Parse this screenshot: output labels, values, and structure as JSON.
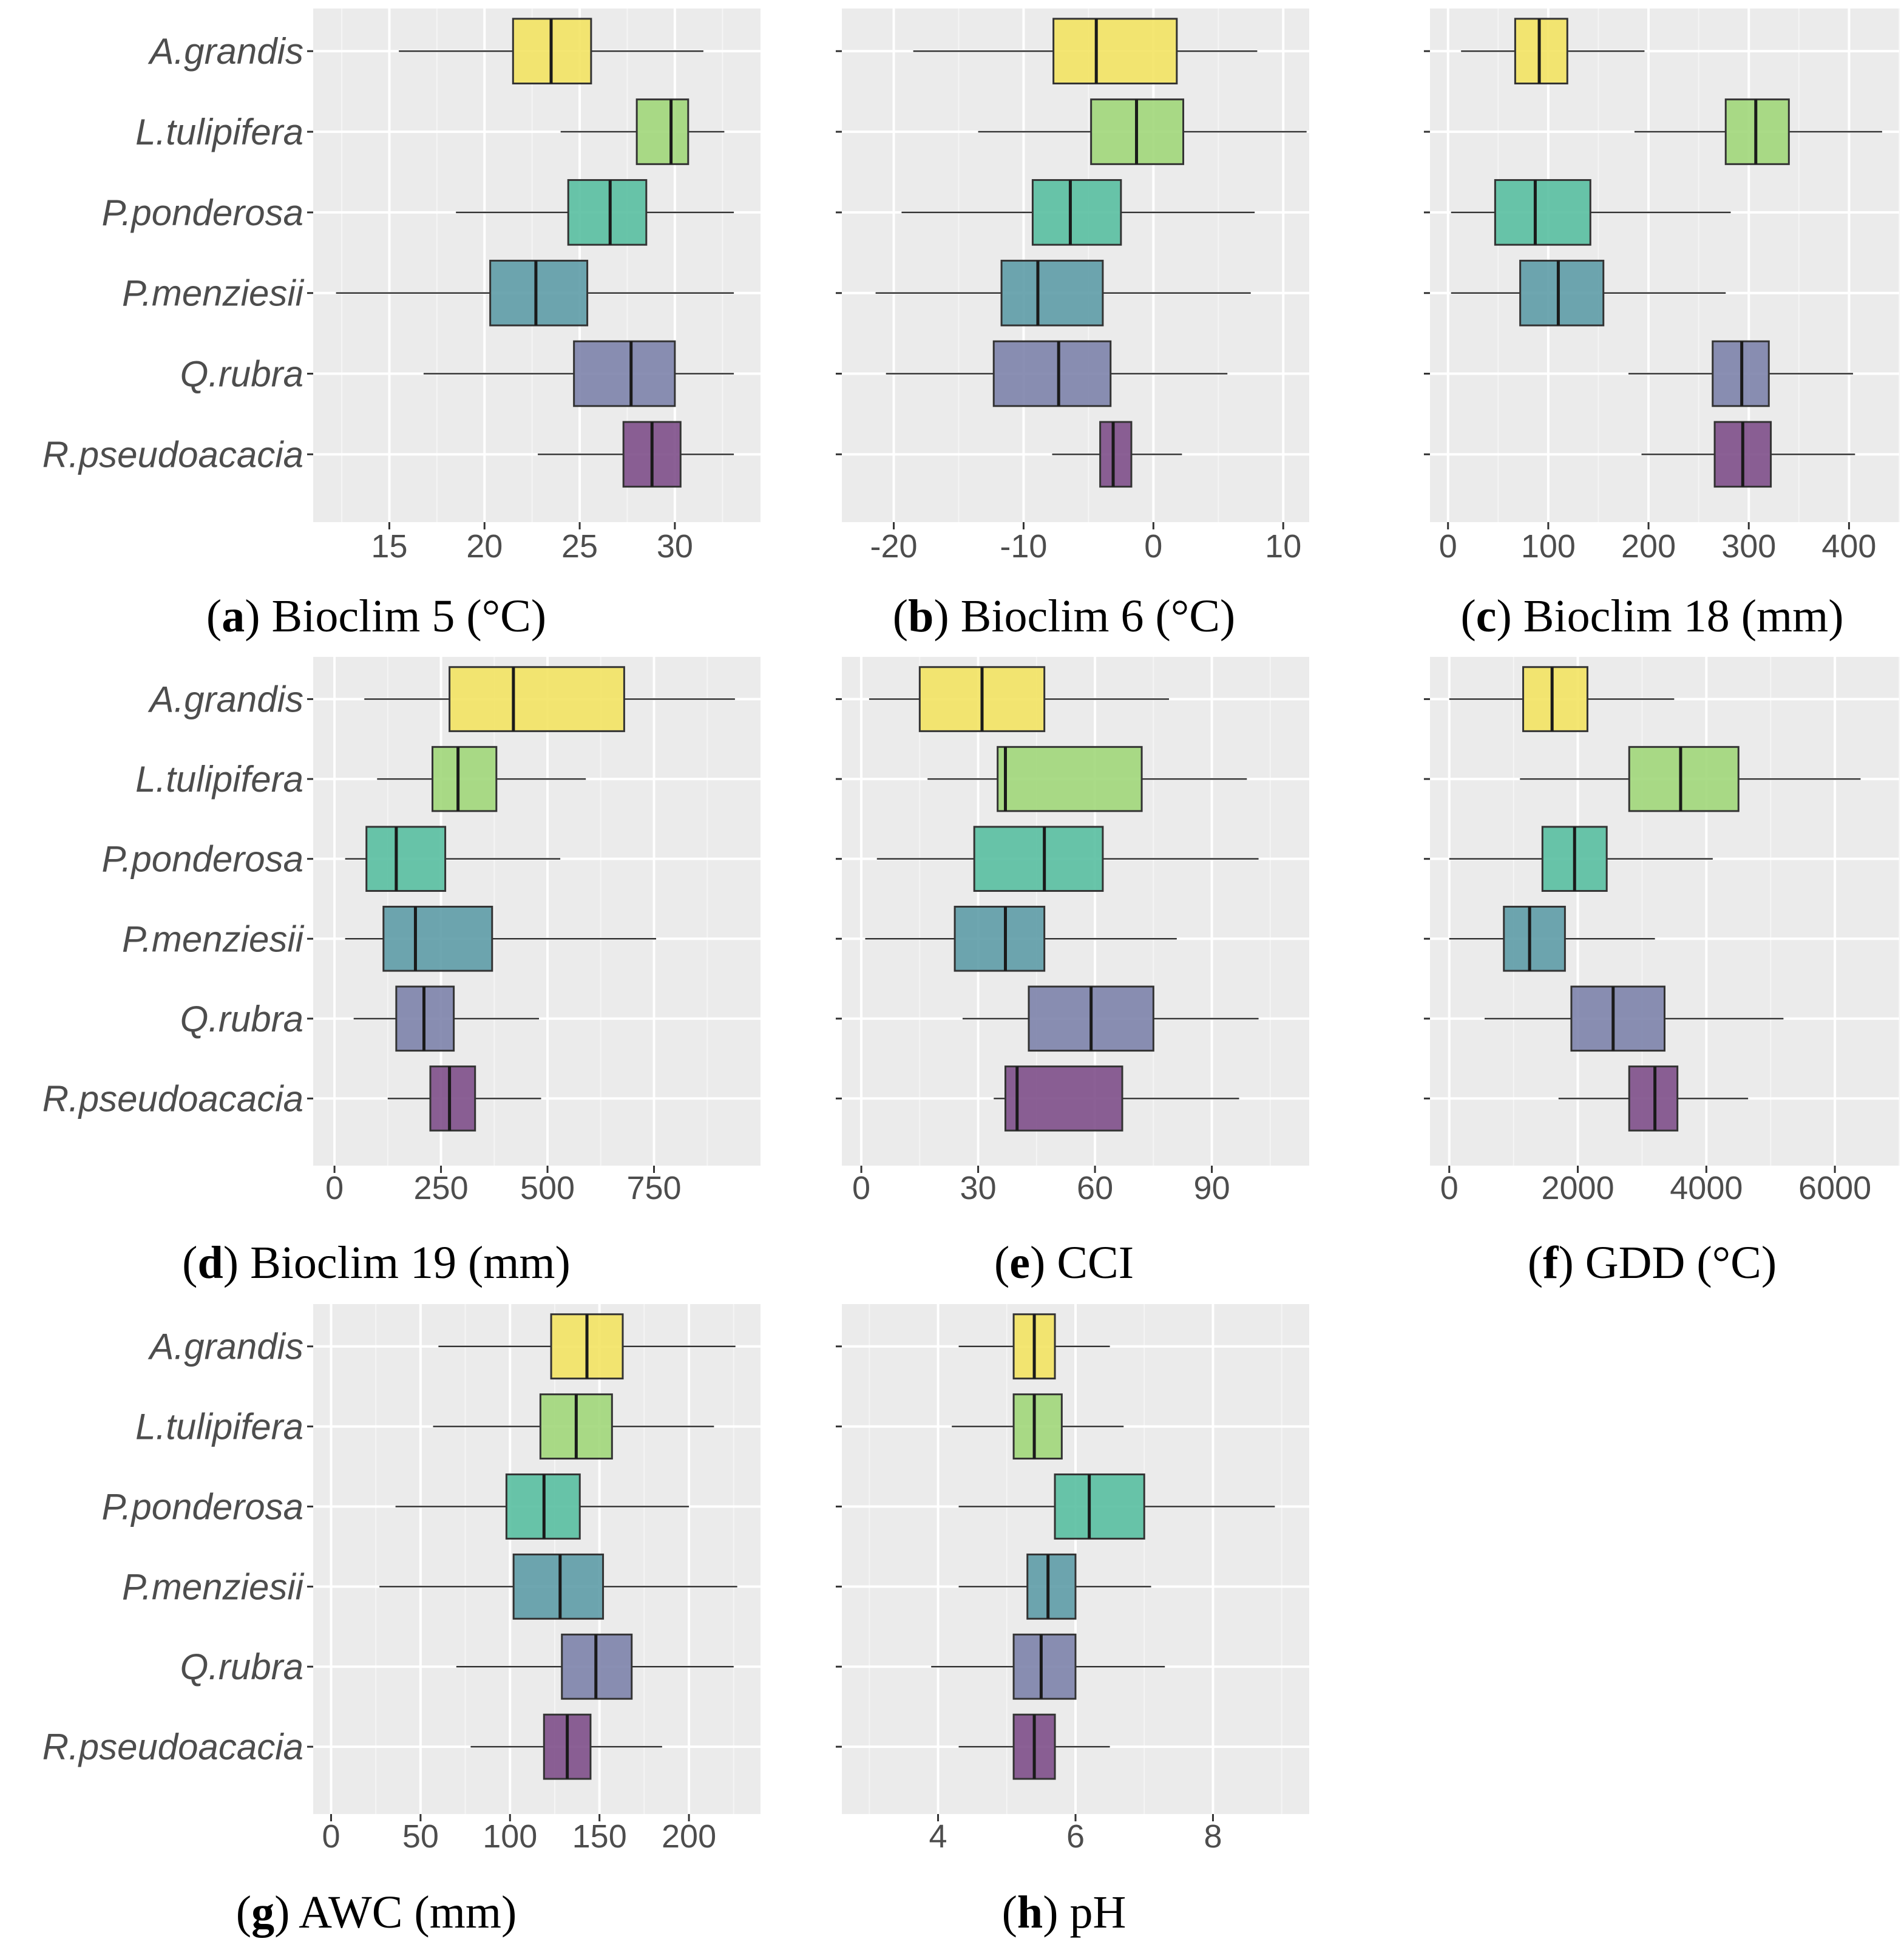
{
  "species": [
    "A.grandis",
    "L.tulipifera",
    "P.ponderosa",
    "P.menziesii",
    "Q.rubra",
    "R.pseudoacacia"
  ],
  "species_colors": [
    "#f3e35f",
    "#9ed676",
    "#54bd9e",
    "#5a9aa5",
    "#7a7fa9",
    "#7b4a86"
  ],
  "chart_data": [
    {
      "type": "boxplot",
      "letter": "a",
      "title": "Bioclim 5 (°C)",
      "xlim": [
        11,
        34.5
      ],
      "xticks": [
        15,
        20,
        25,
        30
      ],
      "tick_labels": [
        "15",
        "20",
        "25",
        "30"
      ],
      "boxes": [
        {
          "species": "A.grandis",
          "whisker_low": 15.5,
          "q1": 21.5,
          "median": 23.5,
          "q3": 25.6,
          "whisker_high": 31.5
        },
        {
          "species": "L.tulipifera",
          "whisker_low": 24.0,
          "q1": 28.0,
          "median": 29.8,
          "q3": 30.7,
          "whisker_high": 32.6
        },
        {
          "species": "P.ponderosa",
          "whisker_low": 18.5,
          "q1": 24.4,
          "median": 26.6,
          "q3": 28.5,
          "whisker_high": 33.1
        },
        {
          "species": "P.menziesii",
          "whisker_low": 12.2,
          "q1": 20.3,
          "median": 22.7,
          "q3": 25.4,
          "whisker_high": 33.1
        },
        {
          "species": "Q.rubra",
          "whisker_low": 16.8,
          "q1": 24.7,
          "median": 27.7,
          "q3": 30.0,
          "whisker_high": 33.1
        },
        {
          "species": "R.pseudoacacia",
          "whisker_low": 22.8,
          "q1": 27.3,
          "median": 28.8,
          "q3": 30.3,
          "whisker_high": 33.1
        }
      ]
    },
    {
      "type": "boxplot",
      "letter": "b",
      "title": "Bioclim 6 (°C)",
      "xlim": [
        -24,
        12
      ],
      "xticks": [
        -20,
        -10,
        0,
        10
      ],
      "tick_labels": [
        "-20",
        "-10",
        "0",
        "10"
      ],
      "boxes": [
        {
          "species": "A.grandis",
          "whisker_low": -18.5,
          "q1": -7.7,
          "median": -4.4,
          "q3": 1.8,
          "whisker_high": 8.0
        },
        {
          "species": "L.tulipifera",
          "whisker_low": -13.5,
          "q1": -4.8,
          "median": -1.3,
          "q3": 2.3,
          "whisker_high": 11.8
        },
        {
          "species": "P.ponderosa",
          "whisker_low": -19.4,
          "q1": -9.3,
          "median": -6.4,
          "q3": -2.5,
          "whisker_high": 7.8
        },
        {
          "species": "P.menziesii",
          "whisker_low": -21.4,
          "q1": -11.7,
          "median": -8.9,
          "q3": -3.9,
          "whisker_high": 7.5
        },
        {
          "species": "Q.rubra",
          "whisker_low": -20.6,
          "q1": -12.3,
          "median": -7.3,
          "q3": -3.3,
          "whisker_high": 5.7
        },
        {
          "species": "R.pseudoacacia",
          "whisker_low": -7.8,
          "q1": -4.1,
          "median": -3.1,
          "q3": -1.7,
          "whisker_high": 2.2
        }
      ]
    },
    {
      "type": "boxplot",
      "letter": "c",
      "title": "Bioclim 18 (mm)",
      "xlim": [
        -18,
        450
      ],
      "xticks": [
        0,
        100,
        200,
        300,
        400
      ],
      "tick_labels": [
        "0",
        "100",
        "200",
        "300",
        "400"
      ],
      "boxes": [
        {
          "species": "A.grandis",
          "whisker_low": 13,
          "q1": 67,
          "median": 91,
          "q3": 119,
          "whisker_high": 196
        },
        {
          "species": "L.tulipifera",
          "whisker_low": 186,
          "q1": 277,
          "median": 307,
          "q3": 340,
          "whisker_high": 433
        },
        {
          "species": "P.ponderosa",
          "whisker_low": 3,
          "q1": 47,
          "median": 87,
          "q3": 142,
          "whisker_high": 282
        },
        {
          "species": "P.menziesii",
          "whisker_low": 3,
          "q1": 72,
          "median": 110,
          "q3": 155,
          "whisker_high": 277
        },
        {
          "species": "Q.rubra",
          "whisker_low": 180,
          "q1": 264,
          "median": 293,
          "q3": 320,
          "whisker_high": 404
        },
        {
          "species": "R.pseudoacacia",
          "whisker_low": 193,
          "q1": 266,
          "median": 294,
          "q3": 322,
          "whisker_high": 406
        }
      ]
    },
    {
      "type": "boxplot",
      "letter": "d",
      "title": "Bioclim 19 (mm)",
      "xlim": [
        -50,
        1000
      ],
      "xticks": [
        0,
        250,
        500,
        750
      ],
      "tick_labels": [
        "0",
        "250",
        "500",
        "750"
      ],
      "boxes": [
        {
          "species": "A.grandis",
          "whisker_low": 70,
          "q1": 270,
          "median": 420,
          "q3": 680,
          "whisker_high": 940
        },
        {
          "species": "L.tulipifera",
          "whisker_low": 100,
          "q1": 230,
          "median": 290,
          "q3": 380,
          "whisker_high": 590
        },
        {
          "species": "P.ponderosa",
          "whisker_low": 25,
          "q1": 75,
          "median": 145,
          "q3": 260,
          "whisker_high": 530
        },
        {
          "species": "P.menziesii",
          "whisker_low": 25,
          "q1": 115,
          "median": 190,
          "q3": 370,
          "whisker_high": 755
        },
        {
          "species": "Q.rubra",
          "whisker_low": 45,
          "q1": 145,
          "median": 210,
          "q3": 280,
          "whisker_high": 480
        },
        {
          "species": "R.pseudoacacia",
          "whisker_low": 125,
          "q1": 225,
          "median": 270,
          "q3": 330,
          "whisker_high": 485
        }
      ]
    },
    {
      "type": "boxplot",
      "letter": "e",
      "title": "CCI",
      "xlim": [
        -5,
        115
      ],
      "xticks": [
        0,
        30,
        60,
        90
      ],
      "tick_labels": [
        "0",
        "30",
        "60",
        "90"
      ],
      "boxes": [
        {
          "species": "A.grandis",
          "whisker_low": 2,
          "q1": 15,
          "median": 31,
          "q3": 47,
          "whisker_high": 79
        },
        {
          "species": "L.tulipifera",
          "whisker_low": 17,
          "q1": 35,
          "median": 37,
          "q3": 72,
          "whisker_high": 99
        },
        {
          "species": "P.ponderosa",
          "whisker_low": 4,
          "q1": 29,
          "median": 47,
          "q3": 62,
          "whisker_high": 102
        },
        {
          "species": "P.menziesii",
          "whisker_low": 1,
          "q1": 24,
          "median": 37,
          "q3": 47,
          "whisker_high": 81
        },
        {
          "species": "Q.rubra",
          "whisker_low": 26,
          "q1": 43,
          "median": 59,
          "q3": 75,
          "whisker_high": 102
        },
        {
          "species": "R.pseudoacacia",
          "whisker_low": 34,
          "q1": 37,
          "median": 40,
          "q3": 67,
          "whisker_high": 97
        }
      ]
    },
    {
      "type": "boxplot",
      "letter": "f",
      "title": "GDD (°C)",
      "xlim": [
        -300,
        7000
      ],
      "xticks": [
        0,
        2000,
        4000,
        6000
      ],
      "tick_labels": [
        "0",
        "2000",
        "4000",
        "6000"
      ],
      "boxes": [
        {
          "species": "A.grandis",
          "whisker_low": 0,
          "q1": 1150,
          "median": 1600,
          "q3": 2150,
          "whisker_high": 3500
        },
        {
          "species": "L.tulipifera",
          "whisker_low": 1100,
          "q1": 2800,
          "median": 3600,
          "q3": 4500,
          "whisker_high": 6400
        },
        {
          "species": "P.ponderosa",
          "whisker_low": 0,
          "q1": 1450,
          "median": 1950,
          "q3": 2450,
          "whisker_high": 4100
        },
        {
          "species": "P.menziesii",
          "whisker_low": 0,
          "q1": 850,
          "median": 1250,
          "q3": 1800,
          "whisker_high": 3200
        },
        {
          "species": "Q.rubra",
          "whisker_low": 550,
          "q1": 1900,
          "median": 2550,
          "q3": 3350,
          "whisker_high": 5200
        },
        {
          "species": "R.pseudoacacia",
          "whisker_low": 1700,
          "q1": 2800,
          "median": 3200,
          "q3": 3550,
          "whisker_high": 4650
        }
      ]
    },
    {
      "type": "boxplot",
      "letter": "g",
      "title": "AWC (mm)",
      "xlim": [
        -10,
        240
      ],
      "xticks": [
        0,
        50,
        100,
        150,
        200
      ],
      "tick_labels": [
        "0",
        "50",
        "100",
        "150",
        "200"
      ],
      "boxes": [
        {
          "species": "A.grandis",
          "whisker_low": 60,
          "q1": 123,
          "median": 143,
          "q3": 163,
          "whisker_high": 226
        },
        {
          "species": "L.tulipifera",
          "whisker_low": 57,
          "q1": 117,
          "median": 137,
          "q3": 157,
          "whisker_high": 214
        },
        {
          "species": "P.ponderosa",
          "whisker_low": 36,
          "q1": 98,
          "median": 119,
          "q3": 139,
          "whisker_high": 200
        },
        {
          "species": "P.menziesii",
          "whisker_low": 27,
          "q1": 102,
          "median": 128,
          "q3": 152,
          "whisker_high": 227
        },
        {
          "species": "Q.rubra",
          "whisker_low": 70,
          "q1": 129,
          "median": 148,
          "q3": 168,
          "whisker_high": 225
        },
        {
          "species": "R.pseudoacacia",
          "whisker_low": 78,
          "q1": 119,
          "median": 132,
          "q3": 145,
          "whisker_high": 185
        }
      ]
    },
    {
      "type": "boxplot",
      "letter": "h",
      "title": "pH",
      "xlim": [
        2.6,
        9.4
      ],
      "xticks": [
        4,
        6,
        8
      ],
      "tick_labels": [
        "4",
        "6",
        "8"
      ],
      "boxes": [
        {
          "species": "A.grandis",
          "whisker_low": 4.3,
          "q1": 5.1,
          "median": 5.4,
          "q3": 5.7,
          "whisker_high": 6.5
        },
        {
          "species": "L.tulipifera",
          "whisker_low": 4.2,
          "q1": 5.1,
          "median": 5.4,
          "q3": 5.8,
          "whisker_high": 6.7
        },
        {
          "species": "P.ponderosa",
          "whisker_low": 4.3,
          "q1": 5.7,
          "median": 6.2,
          "q3": 7.0,
          "whisker_high": 8.9
        },
        {
          "species": "P.menziesii",
          "whisker_low": 4.3,
          "q1": 5.3,
          "median": 5.6,
          "q3": 6.0,
          "whisker_high": 7.1
        },
        {
          "species": "Q.rubra",
          "whisker_low": 3.9,
          "q1": 5.1,
          "median": 5.5,
          "q3": 6.0,
          "whisker_high": 7.3
        },
        {
          "species": "R.pseudoacacia",
          "whisker_low": 4.3,
          "q1": 5.1,
          "median": 5.4,
          "q3": 5.7,
          "whisker_high": 6.5
        }
      ]
    }
  ]
}
